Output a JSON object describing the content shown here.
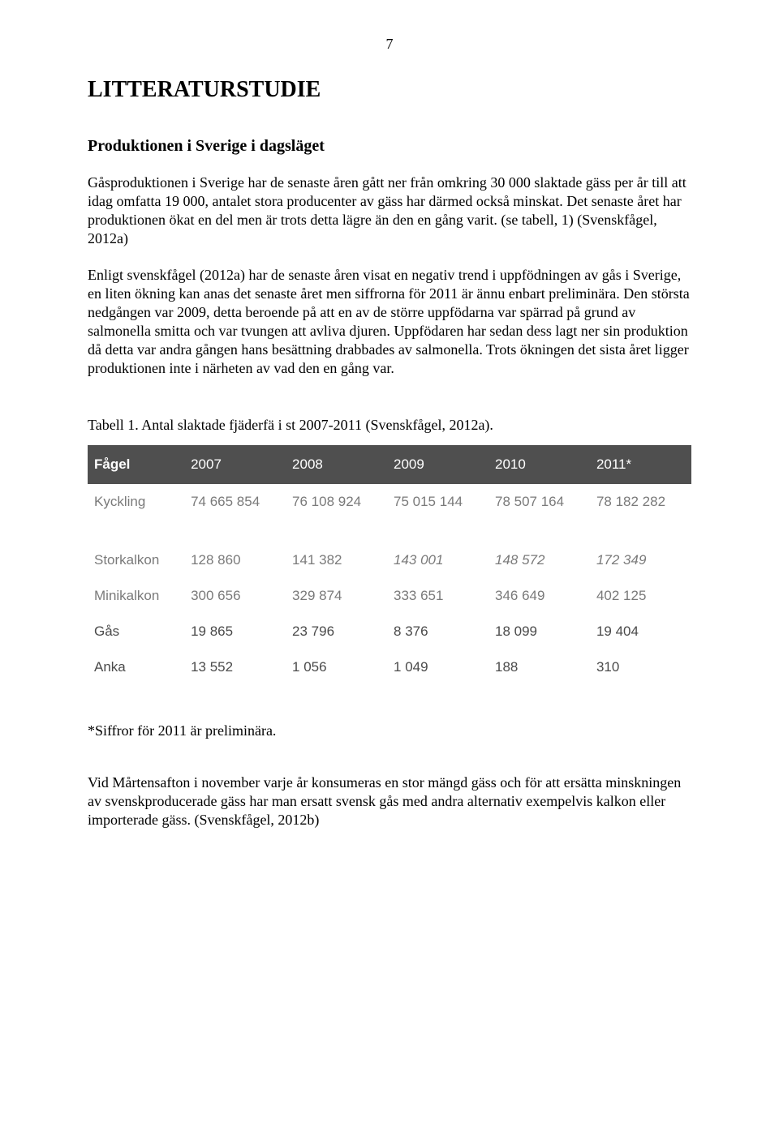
{
  "page_number": "7",
  "heading_main": "LITTERATURSTUDIE",
  "heading_sub": "Produktionen i Sverige i dagsläget",
  "paragraph_1": "Gåsproduktionen i Sverige har de senaste åren gått ner från omkring 30 000 slaktade gäss per år till att idag omfatta 19 000, antalet stora producenter av gäss har därmed också minskat. Det senaste året har produktionen ökat en del men är trots detta lägre än den en gång varit. (se tabell, 1) (Svenskfågel, 2012a)",
  "paragraph_2": "Enligt svenskfågel (2012a) har de senaste åren visat en negativ trend i uppfödningen av gås i Sverige, en liten ökning kan anas det senaste året men siffrorna för 2011 är ännu enbart preliminära. Den största nedgången var 2009, detta beroende på att en av de större uppfödarna var spärrad på grund av salmonella smitta och var tvungen att avliva djuren. Uppfödaren har sedan dess lagt ner sin produktion då detta var andra gången hans besättning drabbades av salmonella. Trots ökningen det sista året ligger produktionen inte i närheten av vad den en gång var.",
  "table_caption": "Tabell 1. Antal slaktade fjäderfä i st 2007-2011 (Svenskfågel, 2012a).",
  "table": {
    "type": "table",
    "header_bg": "#4f4f4f",
    "header_fg": "#ffffff",
    "body_fg_light": "#7a7a7a",
    "body_fg_dark": "#4a4a4a",
    "font_family": "Arial",
    "columns": [
      "Fågel",
      "2007",
      "2008",
      "2009",
      "2010",
      "2011*"
    ],
    "rows": [
      {
        "label": "Kyckling",
        "cls": "kyckling",
        "cells": [
          "74 665 854",
          "76 108 924",
          "75 015 144",
          "78 507 164",
          "78 182 282"
        ],
        "italic_cols": []
      },
      {
        "label": "Storkalkon",
        "cls": "storkalkon",
        "cells": [
          "128 860",
          "141 382",
          "143 001",
          "148 572",
          "172 349"
        ],
        "italic_cols": [
          2,
          3,
          4
        ]
      },
      {
        "label": "Minikalkon",
        "cls": "mini",
        "cells": [
          "300 656",
          "329 874",
          "333 651",
          "346 649",
          "402 125"
        ],
        "italic_cols": []
      },
      {
        "label": "Gås",
        "cls": "gas",
        "cells": [
          "19 865",
          "23 796",
          "8 376",
          "18 099",
          "19 404"
        ],
        "italic_cols": []
      },
      {
        "label": "Anka",
        "cls": "anka",
        "cells": [
          "13 552",
          "1 056",
          "1 049",
          "188",
          "310"
        ],
        "italic_cols": []
      }
    ]
  },
  "footnote": "*Siffror för 2011 är preliminära.",
  "paragraph_3": "Vid Mårtensafton i november varje år konsumeras en stor mängd gäss och för att ersätta minskningen av svenskproducerade gäss har man ersatt svensk gås med andra alternativ exempelvis kalkon eller importerade gäss. (Svenskfågel, 2012b)"
}
